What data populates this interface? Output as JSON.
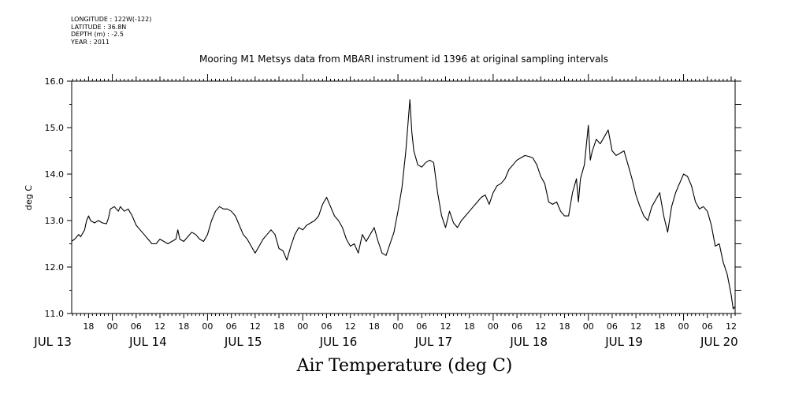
{
  "header": {
    "longitude": "LONGITUDE : 122W(-122)",
    "latitude": "LATITUDE : 36.8N",
    "depth": "DEPTH (m) : -2.5",
    "year": "YEAR : 2011"
  },
  "chart_data": {
    "type": "line",
    "title": "Mooring M1 Metsys data from MBARI instrument id 1396 at original sampling intervals",
    "xlabel": "Air Temperature (deg C)",
    "ylabel": "deg C",
    "ylim": [
      11.0,
      16.0
    ],
    "y_ticks": [
      "11.0",
      "12.0",
      "13.0",
      "14.0",
      "15.0",
      "16.0"
    ],
    "x_hour_ticks": [
      "18",
      "00",
      "06",
      "12",
      "18",
      "00",
      "06",
      "12",
      "18",
      "00",
      "06",
      "12",
      "18",
      "00",
      "06",
      "12",
      "18",
      "00",
      "06",
      "12",
      "18",
      "00",
      "06",
      "12",
      "18",
      "00",
      "06",
      "12"
    ],
    "x_day_labels": [
      "JUL 13",
      "JUL 14",
      "JUL 15",
      "JUL 16",
      "JUL 17",
      "JUL 18",
      "JUL 19",
      "JUL 20"
    ],
    "x_hours_range": [
      13.75,
      181
    ],
    "series": [
      {
        "color": "#000000",
        "points": [
          [
            13.7,
            12.55
          ],
          [
            14.5,
            12.6
          ],
          [
            15.5,
            12.7
          ],
          [
            16,
            12.65
          ],
          [
            17,
            12.8
          ],
          [
            17.5,
            13.0
          ],
          [
            18,
            13.1
          ],
          [
            18.5,
            13.0
          ],
          [
            19.5,
            12.95
          ],
          [
            20.5,
            13.0
          ],
          [
            21.5,
            12.95
          ],
          [
            22.5,
            12.93
          ],
          [
            23,
            13.05
          ],
          [
            23.5,
            13.25
          ],
          [
            24.5,
            13.3
          ],
          [
            25.5,
            13.2
          ],
          [
            26,
            13.3
          ],
          [
            27,
            13.2
          ],
          [
            28,
            13.25
          ],
          [
            29,
            13.1
          ],
          [
            30,
            12.9
          ],
          [
            31,
            12.8
          ],
          [
            32,
            12.7
          ],
          [
            33,
            12.6
          ],
          [
            34,
            12.5
          ],
          [
            35,
            12.5
          ],
          [
            36,
            12.6
          ],
          [
            37,
            12.55
          ],
          [
            38,
            12.5
          ],
          [
            39,
            12.55
          ],
          [
            40,
            12.6
          ],
          [
            40.5,
            12.8
          ],
          [
            41,
            12.6
          ],
          [
            42,
            12.55
          ],
          [
            43,
            12.65
          ],
          [
            44,
            12.75
          ],
          [
            45,
            12.7
          ],
          [
            46,
            12.6
          ],
          [
            47,
            12.55
          ],
          [
            48,
            12.7
          ],
          [
            49,
            13.0
          ],
          [
            50,
            13.2
          ],
          [
            51,
            13.3
          ],
          [
            52,
            13.25
          ],
          [
            53,
            13.25
          ],
          [
            54,
            13.2
          ],
          [
            55,
            13.1
          ],
          [
            56,
            12.9
          ],
          [
            57,
            12.7
          ],
          [
            58,
            12.6
          ],
          [
            59,
            12.45
          ],
          [
            60,
            12.3
          ],
          [
            61,
            12.45
          ],
          [
            62,
            12.6
          ],
          [
            63,
            12.7
          ],
          [
            64,
            12.8
          ],
          [
            65,
            12.7
          ],
          [
            66,
            12.4
          ],
          [
            67,
            12.35
          ],
          [
            68,
            12.15
          ],
          [
            69,
            12.45
          ],
          [
            70,
            12.7
          ],
          [
            71,
            12.85
          ],
          [
            72,
            12.8
          ],
          [
            73,
            12.9
          ],
          [
            74,
            12.95
          ],
          [
            75,
            13.0
          ],
          [
            76,
            13.1
          ],
          [
            77,
            13.35
          ],
          [
            78,
            13.5
          ],
          [
            79,
            13.3
          ],
          [
            80,
            13.1
          ],
          [
            81,
            13.0
          ],
          [
            82,
            12.85
          ],
          [
            83,
            12.6
          ],
          [
            84,
            12.45
          ],
          [
            85,
            12.5
          ],
          [
            86,
            12.3
          ],
          [
            87,
            12.7
          ],
          [
            88,
            12.55
          ],
          [
            89,
            12.7
          ],
          [
            90,
            12.85
          ],
          [
            91,
            12.55
          ],
          [
            92,
            12.3
          ],
          [
            93,
            12.25
          ],
          [
            94,
            12.5
          ],
          [
            95,
            12.75
          ],
          [
            96,
            13.2
          ],
          [
            97,
            13.7
          ],
          [
            98,
            14.5
          ],
          [
            99,
            15.6
          ],
          [
            99.5,
            14.9
          ],
          [
            100,
            14.5
          ],
          [
            101,
            14.2
          ],
          [
            102,
            14.15
          ],
          [
            103,
            14.25
          ],
          [
            104,
            14.3
          ],
          [
            105,
            14.25
          ],
          [
            106,
            13.6
          ],
          [
            107,
            13.1
          ],
          [
            108,
            12.85
          ],
          [
            109,
            13.2
          ],
          [
            110,
            12.95
          ],
          [
            111,
            12.85
          ],
          [
            112,
            13.0
          ],
          [
            113,
            13.1
          ],
          [
            114,
            13.2
          ],
          [
            115,
            13.3
          ],
          [
            116,
            13.4
          ],
          [
            117,
            13.5
          ],
          [
            118,
            13.55
          ],
          [
            119,
            13.35
          ],
          [
            120,
            13.6
          ],
          [
            121,
            13.75
          ],
          [
            122,
            13.8
          ],
          [
            123,
            13.9
          ],
          [
            124,
            14.1
          ],
          [
            125,
            14.2
          ],
          [
            126,
            14.3
          ],
          [
            127,
            14.35
          ],
          [
            128,
            14.4
          ],
          [
            129,
            14.38
          ],
          [
            130,
            14.35
          ],
          [
            131,
            14.2
          ],
          [
            132,
            13.95
          ],
          [
            133,
            13.8
          ],
          [
            134,
            13.4
          ],
          [
            135,
            13.35
          ],
          [
            136,
            13.4
          ],
          [
            137,
            13.2
          ],
          [
            138,
            13.1
          ],
          [
            139,
            13.1
          ],
          [
            140,
            13.6
          ],
          [
            141,
            13.9
          ],
          [
            141.5,
            13.4
          ],
          [
            142,
            13.9
          ],
          [
            143,
            14.2
          ],
          [
            144,
            15.05
          ],
          [
            144.5,
            14.3
          ],
          [
            145,
            14.5
          ],
          [
            146,
            14.75
          ],
          [
            147,
            14.65
          ],
          [
            148,
            14.8
          ],
          [
            149,
            14.95
          ],
          [
            150,
            14.5
          ],
          [
            151,
            14.4
          ],
          [
            152,
            14.45
          ],
          [
            153,
            14.5
          ],
          [
            154,
            14.2
          ],
          [
            155,
            13.9
          ],
          [
            156,
            13.55
          ],
          [
            157,
            13.3
          ],
          [
            158,
            13.1
          ],
          [
            159,
            13.0
          ],
          [
            160,
            13.3
          ],
          [
            161,
            13.45
          ],
          [
            162,
            13.6
          ],
          [
            163,
            13.1
          ],
          [
            164,
            12.75
          ],
          [
            165,
            13.3
          ],
          [
            166,
            13.6
          ],
          [
            167,
            13.8
          ],
          [
            168,
            14.0
          ],
          [
            169,
            13.95
          ],
          [
            170,
            13.75
          ],
          [
            171,
            13.4
          ],
          [
            172,
            13.25
          ],
          [
            173,
            13.3
          ],
          [
            174,
            13.2
          ],
          [
            175,
            12.9
          ],
          [
            176,
            12.45
          ],
          [
            177,
            12.5
          ],
          [
            178,
            12.1
          ],
          [
            179,
            11.85
          ],
          [
            180,
            11.4
          ],
          [
            180.5,
            11.1
          ],
          [
            181,
            11.15
          ]
        ]
      }
    ]
  }
}
